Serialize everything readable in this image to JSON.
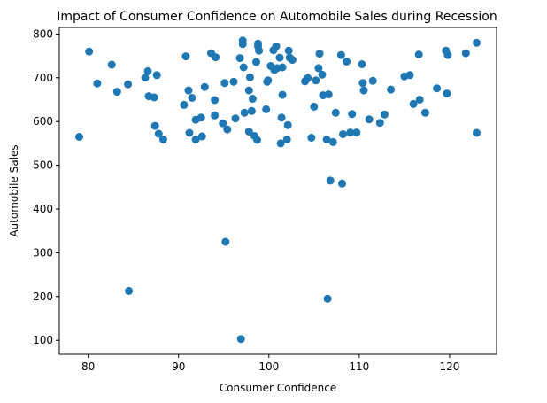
{
  "chart_data": {
    "type": "scatter",
    "title": "Impact of Consumer Confidence on Automobile Sales during Recession",
    "xlabel": "Consumer Confidence",
    "ylabel": "Automobile Sales",
    "xlim": [
      76.8,
      125.2
    ],
    "ylim": [
      68,
      815
    ],
    "xticks": [
      80,
      90,
      100,
      110,
      120
    ],
    "yticks": [
      100,
      200,
      300,
      400,
      500,
      600,
      700,
      800
    ],
    "grid": false,
    "legend": "none",
    "marker_color": "#1f77b4",
    "points": [
      {
        "x": 79.0,
        "y": 565
      },
      {
        "x": 80.1,
        "y": 760
      },
      {
        "x": 81.0,
        "y": 687
      },
      {
        "x": 82.6,
        "y": 730
      },
      {
        "x": 83.2,
        "y": 668
      },
      {
        "x": 84.4,
        "y": 685
      },
      {
        "x": 84.5,
        "y": 213
      },
      {
        "x": 86.3,
        "y": 700
      },
      {
        "x": 86.6,
        "y": 715
      },
      {
        "x": 86.7,
        "y": 658
      },
      {
        "x": 87.3,
        "y": 655
      },
      {
        "x": 87.4,
        "y": 590
      },
      {
        "x": 87.6,
        "y": 706
      },
      {
        "x": 87.8,
        "y": 572
      },
      {
        "x": 88.3,
        "y": 559
      },
      {
        "x": 90.6,
        "y": 638
      },
      {
        "x": 90.8,
        "y": 749
      },
      {
        "x": 91.1,
        "y": 671
      },
      {
        "x": 91.2,
        "y": 574
      },
      {
        "x": 91.5,
        "y": 654
      },
      {
        "x": 91.9,
        "y": 604
      },
      {
        "x": 91.9,
        "y": 559
      },
      {
        "x": 92.5,
        "y": 609
      },
      {
        "x": 92.6,
        "y": 566
      },
      {
        "x": 92.9,
        "y": 679
      },
      {
        "x": 93.6,
        "y": 756
      },
      {
        "x": 94.0,
        "y": 649
      },
      {
        "x": 94.0,
        "y": 614
      },
      {
        "x": 94.1,
        "y": 747
      },
      {
        "x": 94.9,
        "y": 596
      },
      {
        "x": 95.1,
        "y": 688
      },
      {
        "x": 95.2,
        "y": 325
      },
      {
        "x": 95.4,
        "y": 582
      },
      {
        "x": 96.1,
        "y": 691
      },
      {
        "x": 96.3,
        "y": 607
      },
      {
        "x": 96.8,
        "y": 745
      },
      {
        "x": 96.9,
        "y": 103
      },
      {
        "x": 97.1,
        "y": 785
      },
      {
        "x": 97.1,
        "y": 777
      },
      {
        "x": 97.2,
        "y": 724
      },
      {
        "x": 97.3,
        "y": 620
      },
      {
        "x": 97.8,
        "y": 577
      },
      {
        "x": 97.8,
        "y": 671
      },
      {
        "x": 97.9,
        "y": 701
      },
      {
        "x": 98.1,
        "y": 624
      },
      {
        "x": 98.2,
        "y": 652
      },
      {
        "x": 98.4,
        "y": 567
      },
      {
        "x": 98.6,
        "y": 736
      },
      {
        "x": 98.7,
        "y": 558
      },
      {
        "x": 98.8,
        "y": 778
      },
      {
        "x": 98.8,
        "y": 772
      },
      {
        "x": 98.9,
        "y": 762
      },
      {
        "x": 99.7,
        "y": 628
      },
      {
        "x": 99.8,
        "y": 691
      },
      {
        "x": 99.9,
        "y": 694
      },
      {
        "x": 100.2,
        "y": 727
      },
      {
        "x": 100.5,
        "y": 763
      },
      {
        "x": 100.6,
        "y": 718
      },
      {
        "x": 100.8,
        "y": 772
      },
      {
        "x": 100.9,
        "y": 722
      },
      {
        "x": 101.2,
        "y": 746
      },
      {
        "x": 101.3,
        "y": 550
      },
      {
        "x": 101.5,
        "y": 661
      },
      {
        "x": 101.5,
        "y": 724
      },
      {
        "x": 101.4,
        "y": 609
      },
      {
        "x": 102.0,
        "y": 559
      },
      {
        "x": 102.1,
        "y": 592
      },
      {
        "x": 102.2,
        "y": 762
      },
      {
        "x": 102.3,
        "y": 746
      },
      {
        "x": 102.6,
        "y": 741
      },
      {
        "x": 104.0,
        "y": 692
      },
      {
        "x": 104.3,
        "y": 699
      },
      {
        "x": 104.7,
        "y": 563
      },
      {
        "x": 105.0,
        "y": 634
      },
      {
        "x": 105.2,
        "y": 694
      },
      {
        "x": 105.5,
        "y": 722
      },
      {
        "x": 105.6,
        "y": 755
      },
      {
        "x": 105.9,
        "y": 707
      },
      {
        "x": 106.0,
        "y": 660
      },
      {
        "x": 106.4,
        "y": 559
      },
      {
        "x": 106.5,
        "y": 195
      },
      {
        "x": 106.6,
        "y": 662
      },
      {
        "x": 106.8,
        "y": 465
      },
      {
        "x": 107.1,
        "y": 553
      },
      {
        "x": 107.4,
        "y": 620
      },
      {
        "x": 108.0,
        "y": 752
      },
      {
        "x": 108.1,
        "y": 458
      },
      {
        "x": 108.2,
        "y": 571
      },
      {
        "x": 108.6,
        "y": 737
      },
      {
        "x": 109.0,
        "y": 575
      },
      {
        "x": 109.2,
        "y": 617
      },
      {
        "x": 109.7,
        "y": 575
      },
      {
        "x": 110.3,
        "y": 731
      },
      {
        "x": 110.4,
        "y": 688
      },
      {
        "x": 110.5,
        "y": 671
      },
      {
        "x": 111.1,
        "y": 605
      },
      {
        "x": 111.5,
        "y": 693
      },
      {
        "x": 112.3,
        "y": 597
      },
      {
        "x": 112.8,
        "y": 616
      },
      {
        "x": 113.5,
        "y": 673
      },
      {
        "x": 115.0,
        "y": 703
      },
      {
        "x": 115.6,
        "y": 706
      },
      {
        "x": 116.0,
        "y": 640
      },
      {
        "x": 116.6,
        "y": 753
      },
      {
        "x": 116.7,
        "y": 650
      },
      {
        "x": 117.3,
        "y": 620
      },
      {
        "x": 118.6,
        "y": 676
      },
      {
        "x": 119.6,
        "y": 762
      },
      {
        "x": 119.7,
        "y": 664
      },
      {
        "x": 119.8,
        "y": 752
      },
      {
        "x": 121.8,
        "y": 756
      },
      {
        "x": 123.0,
        "y": 780
      },
      {
        "x": 123.0,
        "y": 574
      }
    ]
  }
}
